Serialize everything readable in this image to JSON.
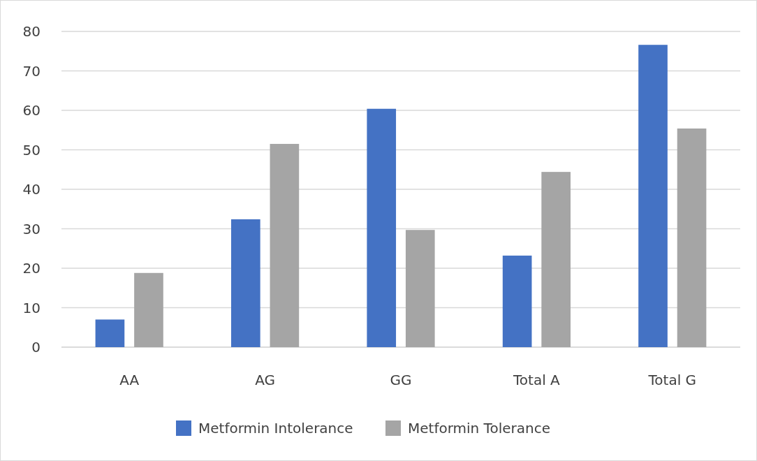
{
  "chart_data": {
    "type": "bar",
    "categories": [
      "AA",
      "AG",
      "GG",
      "Total A",
      "Total G"
    ],
    "series": [
      {
        "name": "Metformin Intolerance",
        "color": "#4472c4",
        "values": [
          7.0,
          32.4,
          60.4,
          23.2,
          76.6
        ]
      },
      {
        "name": "Metformin Tolerance",
        "color": "#a5a5a5",
        "values": [
          18.8,
          51.5,
          29.7,
          44.4,
          55.4
        ]
      }
    ],
    "ylim": [
      0,
      80
    ],
    "yticks": [
      0,
      10,
      20,
      30,
      40,
      50,
      60,
      70,
      80
    ],
    "grid": "y",
    "legend": "bottom"
  }
}
